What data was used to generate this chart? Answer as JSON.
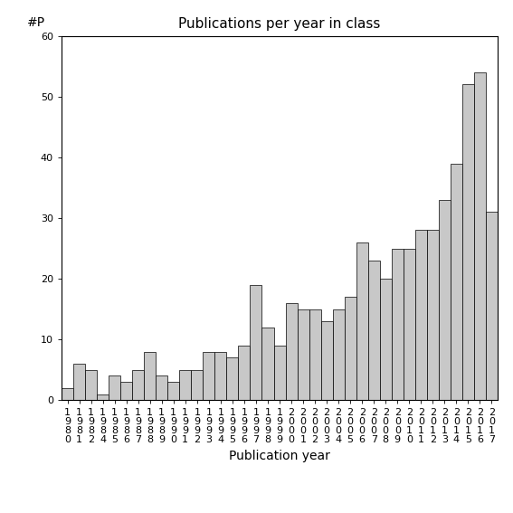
{
  "title": "Publications per year in class",
  "xlabel": "Publication year",
  "ylabel": "#P",
  "ylim": [
    0,
    60
  ],
  "yticks": [
    0,
    10,
    20,
    30,
    40,
    50,
    60
  ],
  "years": [
    1980,
    1981,
    1982,
    1984,
    1985,
    1986,
    1987,
    1988,
    1989,
    1990,
    1991,
    1992,
    1993,
    1994,
    1995,
    1996,
    1997,
    1998,
    1999,
    2000,
    2001,
    2002,
    2003,
    2004,
    2005,
    2006,
    2007,
    2008,
    2009,
    2010,
    2011,
    2012,
    2013,
    2014,
    2015,
    2016,
    2017
  ],
  "values": [
    2,
    6,
    5,
    1,
    4,
    3,
    5,
    8,
    4,
    3,
    5,
    5,
    8,
    8,
    7,
    9,
    19,
    12,
    9,
    16,
    15,
    15,
    13,
    15,
    17,
    26,
    23,
    20,
    25,
    25,
    28,
    28,
    33,
    39,
    52,
    54,
    31
  ],
  "bar_color": "#c8c8c8",
  "bar_edgecolor": "#000000",
  "background_color": "#ffffff",
  "fig_width": 5.67,
  "fig_height": 5.67,
  "dpi": 100,
  "title_fontsize": 11,
  "axis_label_fontsize": 10,
  "tick_fontsize": 8
}
